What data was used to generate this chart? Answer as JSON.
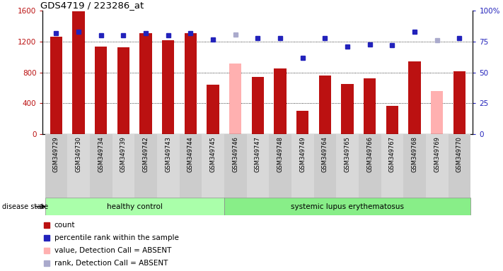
{
  "title": "GDS4719 / 223286_at",
  "samples": [
    "GSM349729",
    "GSM349730",
    "GSM349734",
    "GSM349739",
    "GSM349742",
    "GSM349743",
    "GSM349744",
    "GSM349745",
    "GSM349746",
    "GSM349747",
    "GSM349748",
    "GSM349749",
    "GSM349764",
    "GSM349765",
    "GSM349766",
    "GSM349767",
    "GSM349768",
    "GSM349769",
    "GSM349770"
  ],
  "counts": [
    1260,
    1590,
    1140,
    1130,
    1310,
    1220,
    1310,
    640,
    0,
    740,
    850,
    300,
    760,
    650,
    720,
    370,
    940,
    0,
    820
  ],
  "ranks": [
    82,
    83,
    80,
    80,
    82,
    80,
    82,
    77,
    0,
    78,
    78,
    62,
    78,
    71,
    73,
    72,
    83,
    0,
    78
  ],
  "absent": [
    false,
    false,
    false,
    false,
    false,
    false,
    false,
    false,
    true,
    false,
    false,
    false,
    false,
    false,
    false,
    false,
    false,
    true,
    false
  ],
  "absent_counts": [
    0,
    0,
    0,
    0,
    0,
    0,
    0,
    0,
    920,
    0,
    0,
    0,
    0,
    0,
    0,
    0,
    0,
    560,
    0
  ],
  "absent_ranks": [
    0,
    0,
    0,
    0,
    0,
    0,
    0,
    0,
    81,
    0,
    0,
    0,
    0,
    0,
    0,
    0,
    0,
    76,
    0
  ],
  "healthy_count": 8,
  "ylim_left": [
    0,
    1600
  ],
  "ylim_right": [
    0,
    100
  ],
  "bar_color": "#bb1111",
  "bar_absent_color": "#ffb0b0",
  "dot_color": "#2222bb",
  "dot_absent_color": "#aaaacc",
  "group_healthy_color": "#aaffaa",
  "group_lupus_color": "#88ee88",
  "group_healthy_label": "healthy control",
  "group_lupus_label": "systemic lupus erythematosus",
  "disease_state_label": "disease state",
  "legend_labels": [
    "count",
    "percentile rank within the sample",
    "value, Detection Call = ABSENT",
    "rank, Detection Call = ABSENT"
  ],
  "legend_colors": [
    "#bb1111",
    "#2222bb",
    "#ffb0b0",
    "#aaaacc"
  ]
}
